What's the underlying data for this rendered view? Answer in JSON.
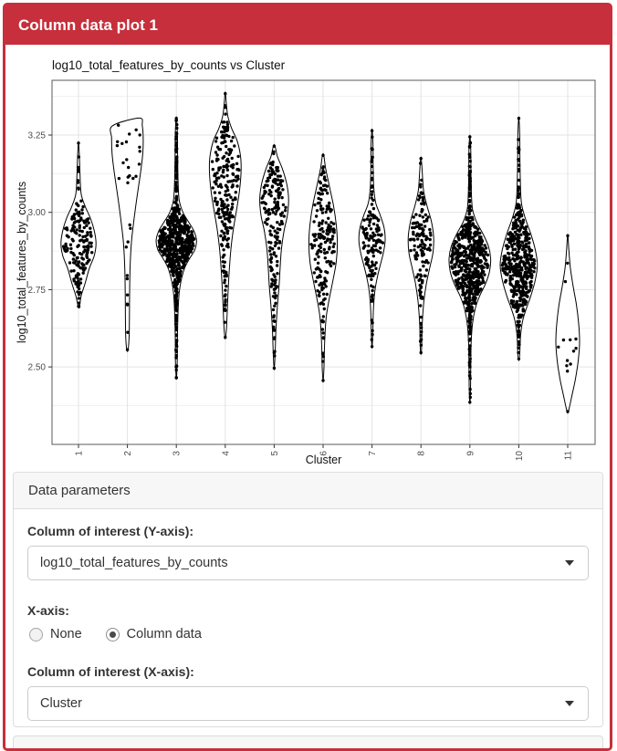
{
  "window": {
    "title": "Column data plot 1"
  },
  "theme": {
    "header_bg": "#C62F3B",
    "header_text": "#ffffff",
    "panel_heading_bg": "#f7f7f7",
    "panel_border": "#dddddd",
    "label_color": "#333333",
    "grid_major": "#e3e3e3",
    "grid_minor": "#f0f0f0",
    "point_color": "#000000"
  },
  "chart_data": {
    "type": "scatter",
    "variant": "violin",
    "title": "log10_total_features_by_counts vs Cluster",
    "xlabel": "Cluster",
    "ylabel": "log10_total_features_by_counts",
    "categories": [
      "1",
      "2",
      "3",
      "4",
      "5",
      "6",
      "7",
      "8",
      "9",
      "10",
      "11"
    ],
    "yticks": [
      2.5,
      2.75,
      3.0,
      3.25
    ],
    "ylim": [
      2.25,
      3.43
    ],
    "grid": true,
    "violins": [
      {
        "cluster": "1",
        "n": 170,
        "min": 2.69,
        "max": 3.23,
        "profile": [
          [
            3.23,
            0
          ],
          [
            3.18,
            0.04
          ],
          [
            3.12,
            0.07
          ],
          [
            3.06,
            0.12
          ],
          [
            3.02,
            0.3
          ],
          [
            2.98,
            0.55
          ],
          [
            2.94,
            0.72
          ],
          [
            2.9,
            0.8
          ],
          [
            2.86,
            0.72
          ],
          [
            2.82,
            0.5
          ],
          [
            2.77,
            0.3
          ],
          [
            2.73,
            0.12
          ],
          [
            2.69,
            0.02
          ]
        ]
      },
      {
        "cluster": "2",
        "n": 30,
        "min": 2.55,
        "max": 3.31,
        "profile": [
          [
            3.305,
            0.55
          ],
          [
            3.28,
            0.68
          ],
          [
            3.24,
            0.72
          ],
          [
            3.19,
            0.7
          ],
          [
            3.14,
            0.62
          ],
          [
            3.08,
            0.5
          ],
          [
            3.02,
            0.38
          ],
          [
            2.96,
            0.27
          ],
          [
            2.9,
            0.18
          ],
          [
            2.82,
            0.12
          ],
          [
            2.74,
            0.1
          ],
          [
            2.66,
            0.09
          ],
          [
            2.6,
            0.08
          ],
          [
            2.56,
            0.04
          ],
          [
            2.55,
            0
          ]
        ]
      },
      {
        "cluster": "3",
        "n": 650,
        "min": 2.46,
        "max": 3.31,
        "profile": [
          [
            3.31,
            0
          ],
          [
            3.25,
            0.05
          ],
          [
            3.18,
            0.06
          ],
          [
            3.1,
            0.08
          ],
          [
            3.04,
            0.13
          ],
          [
            3.0,
            0.3
          ],
          [
            2.97,
            0.55
          ],
          [
            2.94,
            0.8
          ],
          [
            2.91,
            0.92
          ],
          [
            2.88,
            0.85
          ],
          [
            2.85,
            0.6
          ],
          [
            2.82,
            0.38
          ],
          [
            2.78,
            0.22
          ],
          [
            2.74,
            0.13
          ],
          [
            2.68,
            0.08
          ],
          [
            2.6,
            0.05
          ],
          [
            2.52,
            0.04
          ],
          [
            2.46,
            0
          ]
        ]
      },
      {
        "cluster": "4",
        "n": 240,
        "min": 2.59,
        "max": 3.39,
        "profile": [
          [
            3.39,
            0
          ],
          [
            3.35,
            0.05
          ],
          [
            3.31,
            0.12
          ],
          [
            3.27,
            0.3
          ],
          [
            3.23,
            0.55
          ],
          [
            3.18,
            0.7
          ],
          [
            3.13,
            0.72
          ],
          [
            3.07,
            0.65
          ],
          [
            3.01,
            0.52
          ],
          [
            2.95,
            0.38
          ],
          [
            2.89,
            0.27
          ],
          [
            2.83,
            0.2
          ],
          [
            2.76,
            0.14
          ],
          [
            2.68,
            0.09
          ],
          [
            2.62,
            0.05
          ],
          [
            2.59,
            0
          ]
        ]
      },
      {
        "cluster": "5",
        "n": 190,
        "min": 2.49,
        "max": 3.22,
        "profile": [
          [
            3.22,
            0
          ],
          [
            3.18,
            0.15
          ],
          [
            3.14,
            0.38
          ],
          [
            3.09,
            0.58
          ],
          [
            3.04,
            0.66
          ],
          [
            2.99,
            0.6
          ],
          [
            2.94,
            0.45
          ],
          [
            2.88,
            0.33
          ],
          [
            2.82,
            0.27
          ],
          [
            2.76,
            0.22
          ],
          [
            2.7,
            0.15
          ],
          [
            2.62,
            0.08
          ],
          [
            2.54,
            0.04
          ],
          [
            2.49,
            0
          ]
        ]
      },
      {
        "cluster": "6",
        "n": 180,
        "min": 2.45,
        "max": 3.19,
        "profile": [
          [
            3.19,
            0
          ],
          [
            3.14,
            0.12
          ],
          [
            3.08,
            0.3
          ],
          [
            3.02,
            0.48
          ],
          [
            2.96,
            0.6
          ],
          [
            2.9,
            0.65
          ],
          [
            2.84,
            0.6
          ],
          [
            2.78,
            0.45
          ],
          [
            2.72,
            0.28
          ],
          [
            2.66,
            0.14
          ],
          [
            2.58,
            0.07
          ],
          [
            2.5,
            0.04
          ],
          [
            2.45,
            0
          ]
        ]
      },
      {
        "cluster": "7",
        "n": 140,
        "min": 2.56,
        "max": 3.27,
        "profile": [
          [
            3.27,
            0
          ],
          [
            3.22,
            0.04
          ],
          [
            3.15,
            0.05
          ],
          [
            3.08,
            0.08
          ],
          [
            3.03,
            0.17
          ],
          [
            2.99,
            0.38
          ],
          [
            2.95,
            0.55
          ],
          [
            2.91,
            0.6
          ],
          [
            2.87,
            0.52
          ],
          [
            2.83,
            0.38
          ],
          [
            2.79,
            0.24
          ],
          [
            2.74,
            0.12
          ],
          [
            2.68,
            0.06
          ],
          [
            2.6,
            0.03
          ],
          [
            2.56,
            0
          ]
        ]
      },
      {
        "cluster": "8",
        "n": 140,
        "min": 2.54,
        "max": 3.18,
        "profile": [
          [
            3.18,
            0
          ],
          [
            3.13,
            0.06
          ],
          [
            3.07,
            0.12
          ],
          [
            3.02,
            0.28
          ],
          [
            2.97,
            0.48
          ],
          [
            2.92,
            0.58
          ],
          [
            2.87,
            0.55
          ],
          [
            2.82,
            0.4
          ],
          [
            2.77,
            0.25
          ],
          [
            2.71,
            0.13
          ],
          [
            2.64,
            0.06
          ],
          [
            2.56,
            0.03
          ],
          [
            2.54,
            0
          ]
        ]
      },
      {
        "cluster": "9",
        "n": 600,
        "min": 2.38,
        "max": 3.25,
        "profile": [
          [
            3.25,
            0
          ],
          [
            3.2,
            0.04
          ],
          [
            3.13,
            0.05
          ],
          [
            3.06,
            0.07
          ],
          [
            3.01,
            0.12
          ],
          [
            2.97,
            0.3
          ],
          [
            2.93,
            0.6
          ],
          [
            2.89,
            0.85
          ],
          [
            2.85,
            0.95
          ],
          [
            2.81,
            0.9
          ],
          [
            2.77,
            0.72
          ],
          [
            2.73,
            0.45
          ],
          [
            2.69,
            0.25
          ],
          [
            2.64,
            0.12
          ],
          [
            2.58,
            0.06
          ],
          [
            2.5,
            0.04
          ],
          [
            2.43,
            0.03
          ],
          [
            2.38,
            0
          ]
        ]
      },
      {
        "cluster": "10",
        "n": 480,
        "min": 2.52,
        "max": 3.31,
        "profile": [
          [
            3.31,
            0
          ],
          [
            3.25,
            0.04
          ],
          [
            3.18,
            0.05
          ],
          [
            3.1,
            0.07
          ],
          [
            3.03,
            0.12
          ],
          [
            2.98,
            0.3
          ],
          [
            2.93,
            0.55
          ],
          [
            2.88,
            0.75
          ],
          [
            2.83,
            0.85
          ],
          [
            2.78,
            0.75
          ],
          [
            2.73,
            0.55
          ],
          [
            2.69,
            0.35
          ],
          [
            2.65,
            0.18
          ],
          [
            2.6,
            0.08
          ],
          [
            2.54,
            0.04
          ],
          [
            2.52,
            0
          ]
        ]
      },
      {
        "cluster": "11",
        "n": 13,
        "min": 2.35,
        "max": 2.93,
        "profile": [
          [
            2.93,
            0
          ],
          [
            2.88,
            0.05
          ],
          [
            2.82,
            0.12
          ],
          [
            2.76,
            0.25
          ],
          [
            2.7,
            0.4
          ],
          [
            2.64,
            0.5
          ],
          [
            2.58,
            0.54
          ],
          [
            2.52,
            0.48
          ],
          [
            2.46,
            0.35
          ],
          [
            2.41,
            0.2
          ],
          [
            2.37,
            0.08
          ],
          [
            2.35,
            0
          ]
        ]
      }
    ]
  },
  "data_parameters": {
    "heading": "Data parameters",
    "y_axis_label": "Column of interest (Y-axis):",
    "y_axis_value": "log10_total_features_by_counts",
    "x_axis_label": "X-axis:",
    "x_axis_options": [
      {
        "label": "None",
        "selected": false
      },
      {
        "label": "Column data",
        "selected": true
      }
    ],
    "x_axis_col_label": "Column of interest (X-axis):",
    "x_axis_col_value": "Cluster"
  }
}
